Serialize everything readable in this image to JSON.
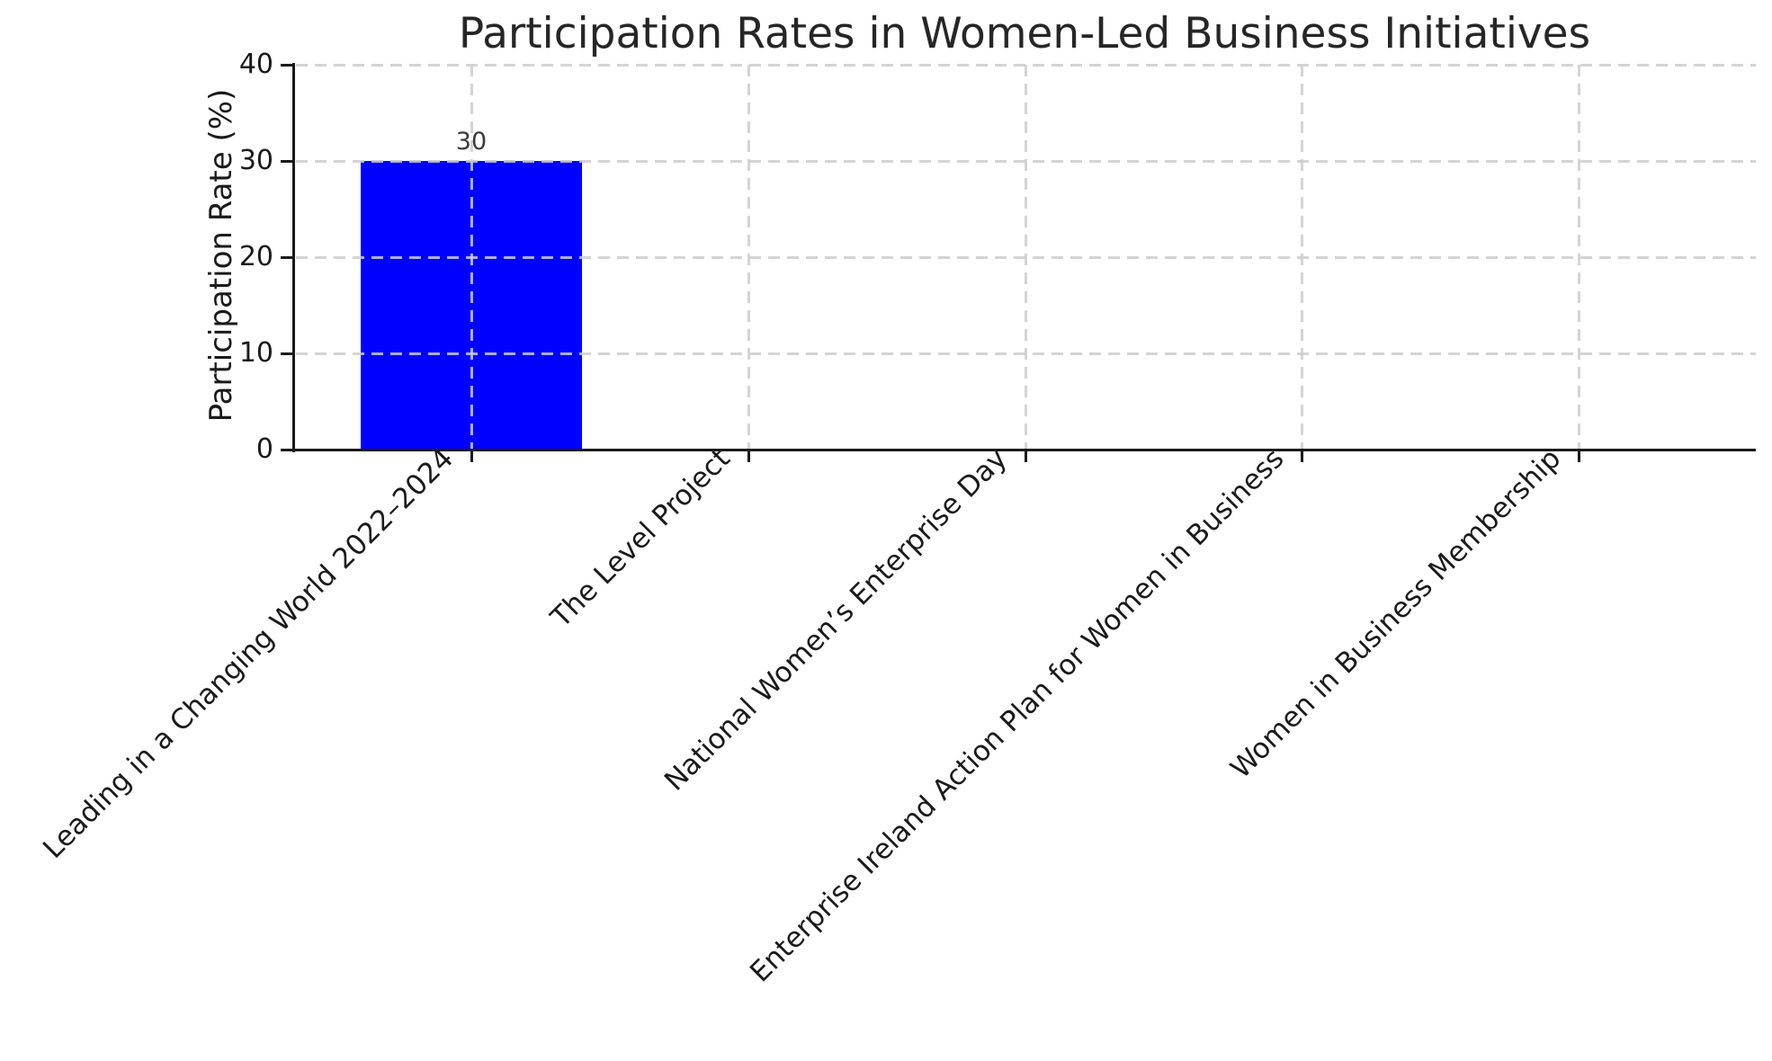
{
  "chart_data": {
    "type": "bar",
    "title": "Participation Rates in Women-Led Business Initiatives",
    "xlabel": "",
    "ylabel": "Participation Rate (%)",
    "categories": [
      "Leading in a Changing World 2022–2024",
      "The Level Project",
      "National Women’s Enterprise Day",
      "Enterprise Ireland Action Plan for Women in Business",
      "Women in Business Membership"
    ],
    "values": [
      30,
      0,
      0,
      0,
      0
    ],
    "bar_value_labels": [
      "30",
      "",
      "",
      "",
      ""
    ],
    "ylim": [
      0,
      40
    ],
    "yticks": [
      0,
      10,
      20,
      30,
      40
    ],
    "bar_color": "#0000ff",
    "grid": {
      "on": true,
      "linestyle": "dashed",
      "color": "#cdcdcd",
      "opacity": 0.85,
      "axes": "both"
    },
    "legend_position": "none",
    "x_tick_label_rotation_deg": 45
  }
}
